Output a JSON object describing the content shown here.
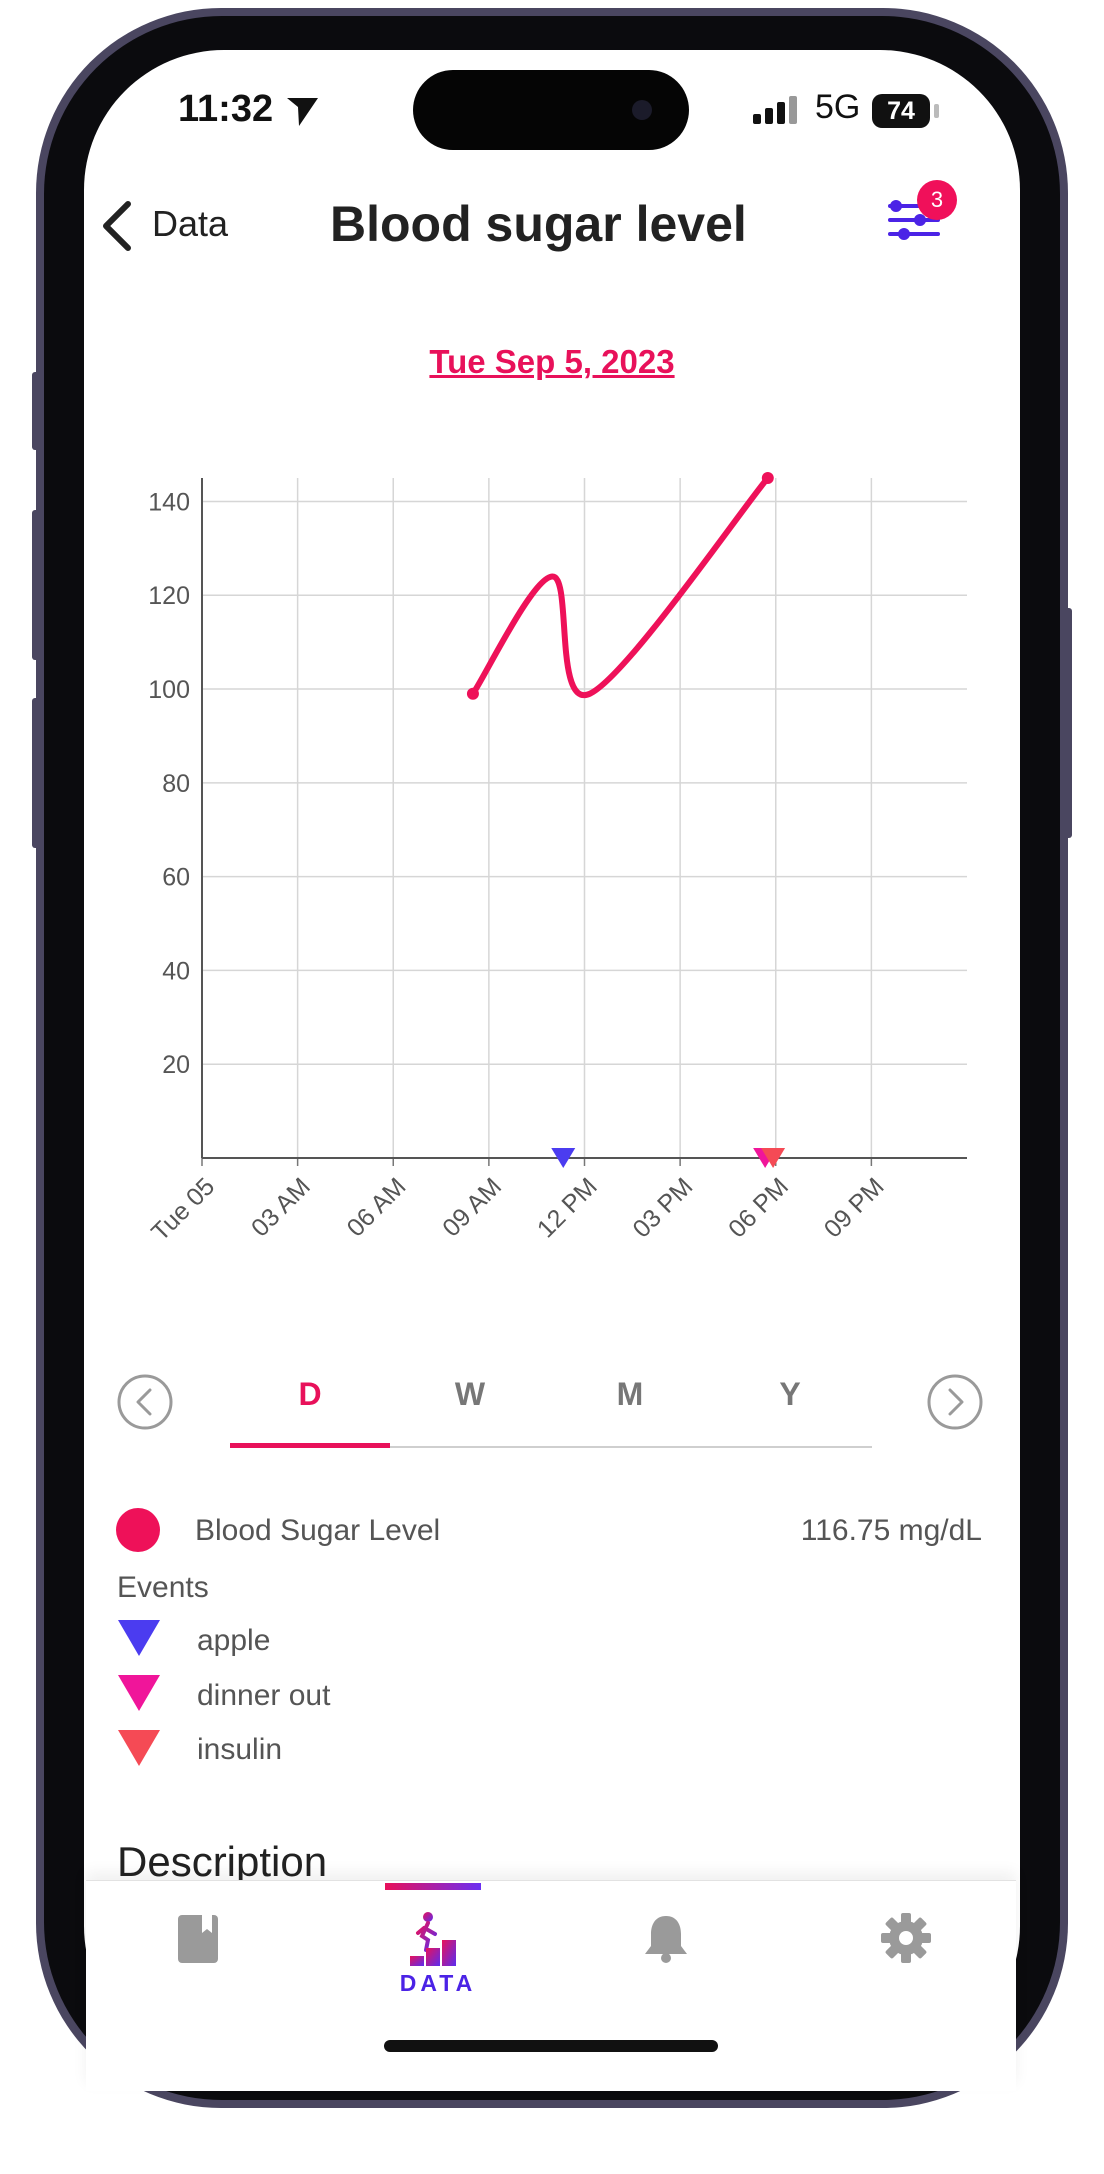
{
  "status_bar": {
    "time": "11:32",
    "network": "5G",
    "battery": "74"
  },
  "header": {
    "back_label": "Data",
    "title": "Blood sugar level",
    "filter_badge": "3"
  },
  "date": "Tue Sep 5, 2023",
  "chart_data": {
    "type": "line",
    "title": "",
    "xlabel": "",
    "ylabel": "",
    "x_ticks": [
      "Tue 05",
      "03 AM",
      "06 AM",
      "09 AM",
      "12 PM",
      "03 PM",
      "06 PM",
      "09 PM"
    ],
    "y_ticks": [
      20,
      40,
      60,
      80,
      100,
      120,
      140
    ],
    "ylim": [
      0,
      145
    ],
    "xlim_hours": [
      0,
      24
    ],
    "grid": true,
    "series": [
      {
        "name": "Blood Sugar Level",
        "color": "#ee1159",
        "x": [
          "08:30",
          "11:00",
          "12:10",
          "17:45"
        ],
        "y": [
          99,
          124,
          99,
          145
        ]
      }
    ],
    "event_markers": [
      {
        "name": "apple",
        "x": "11:20",
        "color": "#4b3cf0"
      },
      {
        "name": "dinner out",
        "x": "17:40",
        "color": "#f0159a"
      },
      {
        "name": "insulin",
        "x": "17:55",
        "color": "#f54a55"
      }
    ]
  },
  "period_tabs": {
    "items": [
      "D",
      "W",
      "M",
      "Y"
    ],
    "selected": "D"
  },
  "legend": {
    "series_label": "Blood Sugar Level",
    "series_value": "116.75 mg/dL",
    "series_color": "#ee1159"
  },
  "events": {
    "label": "Events",
    "items": [
      {
        "label": "apple",
        "color": "#4b3cf0"
      },
      {
        "label": "dinner out",
        "color": "#f0159a"
      },
      {
        "label": "insulin",
        "color": "#f54a55"
      }
    ]
  },
  "description_heading": "Description",
  "tabbar": {
    "items": [
      {
        "icon": "book-icon"
      },
      {
        "icon": "data-icon",
        "label": "DATA",
        "active": true
      },
      {
        "icon": "bell-icon"
      },
      {
        "icon": "gear-icon"
      }
    ]
  }
}
